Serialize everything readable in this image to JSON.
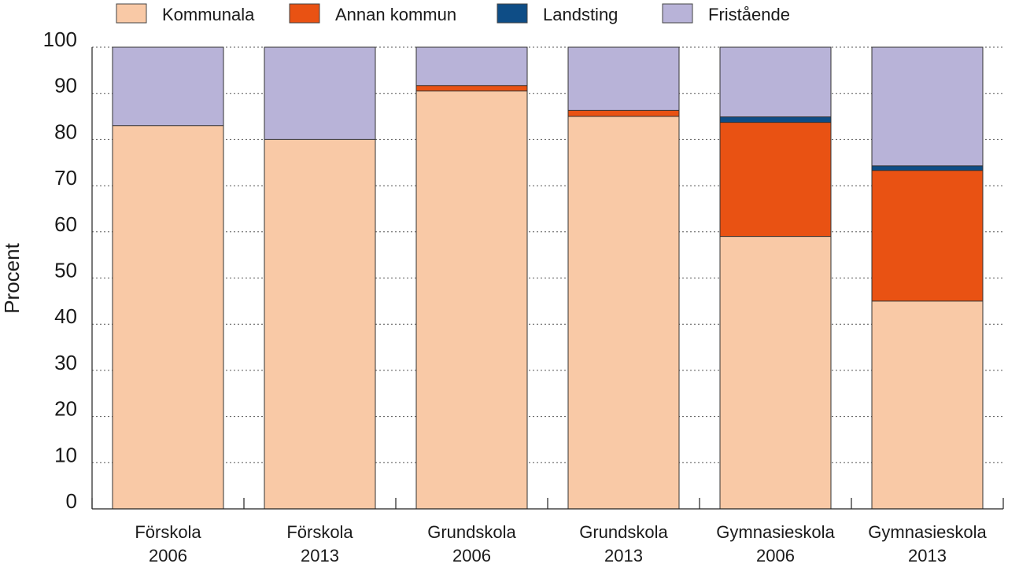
{
  "chart_data": {
    "type": "bar",
    "stacked": true,
    "ylabel": "Procent",
    "xlabel": "",
    "ylim": [
      0,
      100
    ],
    "yticks": [
      0,
      10,
      20,
      30,
      40,
      50,
      60,
      70,
      80,
      90,
      100
    ],
    "grid": "horizontal dashed",
    "legend_position": "top",
    "categories": [
      [
        "Förskola",
        "2006"
      ],
      [
        "Förskola",
        "2013"
      ],
      [
        "Grundskola",
        "2006"
      ],
      [
        "Grundskola",
        "2013"
      ],
      [
        "Gymnasieskola",
        "2006"
      ],
      [
        "Gymnasieskola",
        "2013"
      ]
    ],
    "series": [
      {
        "name": "Kommunala",
        "color": "#f9c9a6",
        "values": [
          83,
          80,
          90.5,
          85,
          59,
          45
        ]
      },
      {
        "name": "Annan kommun",
        "color": "#e95213",
        "values": [
          0,
          0,
          1.2,
          1.3,
          24.7,
          28.3
        ]
      },
      {
        "name": "Landsting",
        "color": "#0e4d86",
        "values": [
          0,
          0,
          0,
          0,
          1.2,
          1
        ]
      },
      {
        "name": "Fristående",
        "color": "#b8b3d8",
        "values": [
          17,
          20,
          8.3,
          13.7,
          15.1,
          25.7
        ]
      }
    ]
  }
}
